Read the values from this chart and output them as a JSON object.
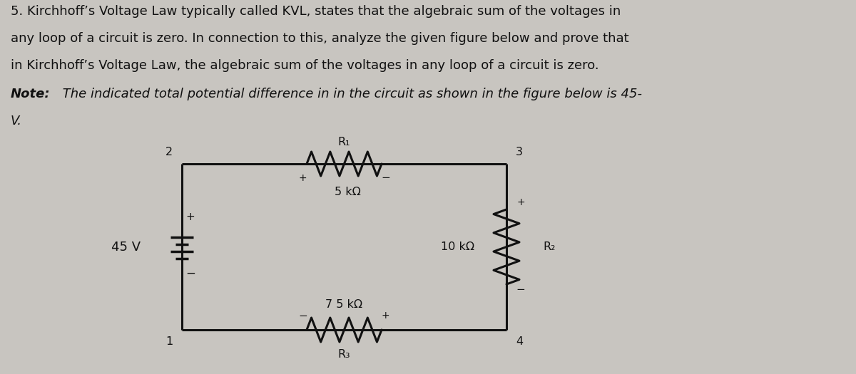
{
  "bg_color": "#c8c5c0",
  "text_color": "#111111",
  "line_color": "#111111",
  "title_text1": "5. Kirchhoff’s Voltage Law typically called KVL, states that the algebraic sum of the voltages in",
  "title_text2": "any loop of a circuit is zero. In connection to this, analyze the given figure below and prove that",
  "title_text3": "in Kirchhoff’s Voltage Law, the algebraic sum of the voltages in any loop of a circuit is zero.",
  "note_bold": "Note:",
  "note_rest": " The indicated total potential difference in in the circuit as shown in the figure below is 45-",
  "note_v": "V.",
  "voltage_label": "45 V",
  "r1_label": "R₁",
  "r1_value": "5 kΩ",
  "r2_label": "R₂",
  "r2_value": "10 kΩ",
  "r3_label": "R₃",
  "r3_value": "7 5 kΩ",
  "node1": "1",
  "node2": "2",
  "node3": "3",
  "node4": "4",
  "font_size_body": 13.0,
  "font_size_circuit": 11.5
}
